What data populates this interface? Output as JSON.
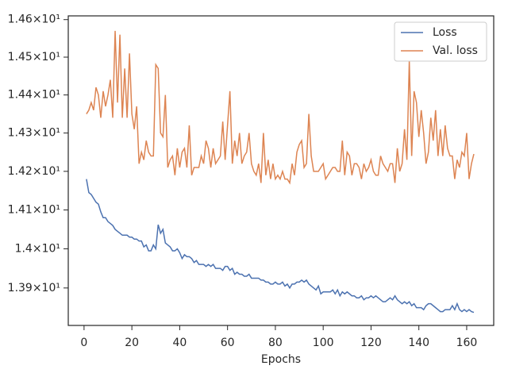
{
  "chart_data": {
    "type": "line",
    "xlabel": "Epochs",
    "log_y": true,
    "grid": false,
    "legend": "upper right",
    "xlim": [
      -6.6,
      171.3
    ],
    "xticks": [
      0,
      20,
      40,
      60,
      80,
      100,
      120,
      140,
      160
    ],
    "ylim": [
      13.805,
      14.61
    ],
    "yticks": [
      {
        "value": 13.9,
        "label": "1.39×10¹"
      },
      {
        "value": 14.0,
        "label": "1.4×10¹"
      },
      {
        "value": 14.1,
        "label": "1.41×10¹"
      },
      {
        "value": 14.2,
        "label": "1.42×10¹"
      },
      {
        "value": 14.3,
        "label": "1.43×10¹"
      },
      {
        "value": 14.4,
        "label": "1.44×10¹"
      },
      {
        "value": 14.5,
        "label": "1.45×10¹"
      },
      {
        "value": 14.6,
        "label": "1.46×10¹"
      }
    ],
    "x": [
      1,
      2,
      3,
      4,
      5,
      6,
      7,
      8,
      9,
      10,
      11,
      12,
      13,
      14,
      15,
      16,
      17,
      18,
      19,
      20,
      21,
      22,
      23,
      24,
      25,
      26,
      27,
      28,
      29,
      30,
      31,
      32,
      33,
      34,
      35,
      36,
      37,
      38,
      39,
      40,
      41,
      42,
      43,
      44,
      45,
      46,
      47,
      48,
      49,
      50,
      51,
      52,
      53,
      54,
      55,
      56,
      57,
      58,
      59,
      60,
      61,
      62,
      63,
      64,
      65,
      66,
      67,
      68,
      69,
      70,
      71,
      72,
      73,
      74,
      75,
      76,
      77,
      78,
      79,
      80,
      81,
      82,
      83,
      84,
      85,
      86,
      87,
      88,
      89,
      90,
      91,
      92,
      93,
      94,
      95,
      96,
      97,
      98,
      99,
      100,
      101,
      102,
      103,
      104,
      105,
      106,
      107,
      108,
      109,
      110,
      111,
      112,
      113,
      114,
      115,
      116,
      117,
      118,
      119,
      120,
      121,
      122,
      123,
      124,
      125,
      126,
      127,
      128,
      129,
      130,
      131,
      132,
      133,
      134,
      135,
      136,
      137,
      138,
      139,
      140,
      141,
      142,
      143,
      144,
      145,
      146,
      147,
      148,
      149,
      150,
      151,
      152,
      153,
      154,
      155,
      156,
      157,
      158,
      159,
      160,
      161,
      162,
      163
    ],
    "series": [
      {
        "name": "Loss",
        "color": "#4c72b0",
        "values": [
          14.18,
          14.145,
          14.14,
          14.13,
          14.12,
          14.115,
          14.095,
          14.08,
          14.08,
          14.07,
          14.065,
          14.06,
          14.05,
          14.045,
          14.04,
          14.035,
          14.035,
          14.035,
          14.03,
          14.03,
          14.025,
          14.025,
          14.02,
          14.02,
          14.005,
          14.01,
          13.995,
          13.995,
          14.01,
          14.0,
          14.062,
          14.04,
          14.05,
          14.015,
          14.01,
          14.005,
          13.995,
          13.995,
          14.0,
          13.99,
          13.975,
          13.985,
          13.98,
          13.98,
          13.975,
          13.965,
          13.97,
          13.96,
          13.96,
          13.96,
          13.955,
          13.96,
          13.955,
          13.96,
          13.95,
          13.95,
          13.95,
          13.945,
          13.955,
          13.955,
          13.945,
          13.95,
          13.935,
          13.94,
          13.935,
          13.935,
          13.93,
          13.93,
          13.935,
          13.925,
          13.925,
          13.925,
          13.925,
          13.92,
          13.92,
          13.915,
          13.915,
          13.91,
          13.91,
          13.915,
          13.91,
          13.91,
          13.915,
          13.905,
          13.91,
          13.9,
          13.91,
          13.91,
          13.915,
          13.915,
          13.92,
          13.915,
          13.92,
          13.91,
          13.905,
          13.9,
          13.895,
          13.905,
          13.885,
          13.89,
          13.89,
          13.89,
          13.89,
          13.895,
          13.885,
          13.895,
          13.88,
          13.89,
          13.885,
          13.89,
          13.885,
          13.88,
          13.88,
          13.875,
          13.875,
          13.88,
          13.87,
          13.875,
          13.875,
          13.88,
          13.875,
          13.88,
          13.875,
          13.87,
          13.865,
          13.865,
          13.87,
          13.875,
          13.87,
          13.88,
          13.87,
          13.865,
          13.86,
          13.865,
          13.86,
          13.865,
          13.855,
          13.86,
          13.85,
          13.85,
          13.85,
          13.845,
          13.855,
          13.86,
          13.86,
          13.855,
          13.85,
          13.845,
          13.84,
          13.84,
          13.845,
          13.845,
          13.845,
          13.855,
          13.845,
          13.86,
          13.845,
          13.84,
          13.845,
          13.84,
          13.845,
          13.84,
          13.838
        ]
      },
      {
        "name": "Val. loss",
        "color": "#dd8452",
        "values": [
          14.35,
          14.36,
          14.38,
          14.36,
          14.42,
          14.4,
          14.34,
          14.41,
          14.37,
          14.4,
          14.44,
          14.34,
          14.57,
          14.38,
          14.56,
          14.34,
          14.47,
          14.34,
          14.51,
          14.35,
          14.31,
          14.37,
          14.22,
          14.25,
          14.23,
          14.28,
          14.25,
          14.24,
          14.24,
          14.48,
          14.47,
          14.3,
          14.29,
          14.4,
          14.21,
          14.23,
          14.24,
          14.19,
          14.26,
          14.21,
          14.25,
          14.26,
          14.21,
          14.32,
          14.19,
          14.21,
          14.21,
          14.21,
          14.24,
          14.22,
          14.28,
          14.26,
          14.21,
          14.26,
          14.22,
          14.23,
          14.24,
          14.33,
          14.23,
          14.32,
          14.41,
          14.22,
          14.28,
          14.24,
          14.3,
          14.22,
          14.24,
          14.25,
          14.3,
          14.22,
          14.2,
          14.19,
          14.22,
          14.17,
          14.3,
          14.19,
          14.23,
          14.18,
          14.22,
          14.18,
          14.19,
          14.18,
          14.2,
          14.18,
          14.18,
          14.17,
          14.22,
          14.19,
          14.25,
          14.27,
          14.28,
          14.21,
          14.22,
          14.35,
          14.24,
          14.2,
          14.2,
          14.2,
          14.21,
          14.22,
          14.18,
          14.19,
          14.2,
          14.21,
          14.21,
          14.2,
          14.2,
          14.28,
          14.19,
          14.25,
          14.24,
          14.19,
          14.22,
          14.22,
          14.21,
          14.18,
          14.22,
          14.2,
          14.21,
          14.23,
          14.2,
          14.19,
          14.19,
          14.24,
          14.22,
          14.21,
          14.2,
          14.22,
          14.22,
          14.17,
          14.26,
          14.2,
          14.22,
          14.31,
          14.23,
          14.49,
          14.24,
          14.41,
          14.38,
          14.29,
          14.36,
          14.3,
          14.22,
          14.25,
          14.34,
          14.28,
          14.36,
          14.24,
          14.31,
          14.24,
          14.32,
          14.26,
          14.24,
          14.24,
          14.18,
          14.23,
          14.21,
          14.25,
          14.24,
          14.3,
          14.18,
          14.22,
          14.245
        ]
      }
    ]
  }
}
